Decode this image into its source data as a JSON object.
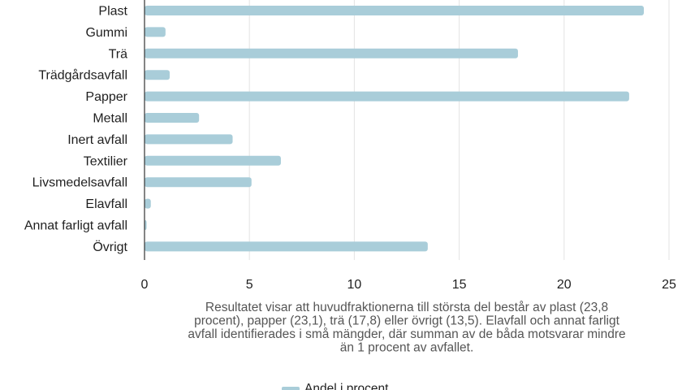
{
  "chart_data": {
    "type": "bar",
    "orientation": "horizontal",
    "categories": [
      "Plast",
      "Gummi",
      "Trä",
      "Trädgårdsavfall",
      "Papper",
      "Metall",
      "Inert avfall",
      "Textilier",
      "Livsmedelsavfall",
      "Elavfall",
      "Annat farligt avfall",
      "Övrigt"
    ],
    "series": [
      {
        "name": "Andel i procent",
        "color": "#a9cdd9",
        "values": [
          23.8,
          1.0,
          17.8,
          1.2,
          23.1,
          2.6,
          4.2,
          6.5,
          5.1,
          0.3,
          0.1,
          13.5
        ]
      }
    ],
    "xlim": [
      0,
      25
    ],
    "xticks": [
      "0",
      "5",
      "10",
      "15",
      "20",
      "25"
    ],
    "xlabel": "",
    "ylabel": "",
    "grid": true,
    "legend_position": "bottom",
    "caption": [
      "Resultatet visar att huvudfraktionerna till största del består av plast (23,8",
      "procent), papper (23,1), trä (17,8) eller övrigt (13,5). Elavfall och annat farligt",
      "avfall identifierades i små mängder, där summan av de båda motsvarar mindre",
      "än 1 procent av avfallet."
    ]
  }
}
